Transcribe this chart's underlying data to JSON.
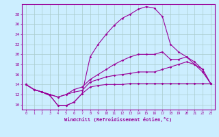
{
  "xlabel": "Windchill (Refroidissement éolien,°C)",
  "background_color": "#cceeff",
  "grid_color": "#aacccc",
  "line_color": "#990099",
  "x_ticks": [
    0,
    1,
    2,
    3,
    4,
    5,
    6,
    7,
    8,
    9,
    10,
    11,
    12,
    13,
    14,
    15,
    16,
    17,
    18,
    19,
    20,
    21,
    22,
    23
  ],
  "y_ticks": [
    10,
    12,
    14,
    16,
    18,
    20,
    22,
    24,
    26,
    28
  ],
  "xlim": [
    -0.5,
    23.5
  ],
  "ylim": [
    9.0,
    30.0
  ],
  "series": {
    "line1": [
      14.0,
      13.0,
      12.5,
      11.8,
      9.8,
      9.8,
      10.5,
      12.2,
      13.5,
      13.8,
      14.0,
      14.0,
      14.0,
      14.2,
      14.2,
      14.2,
      14.2,
      14.2,
      14.2,
      14.2,
      14.2,
      14.2,
      14.2,
      14.2
    ],
    "line2": [
      14.0,
      13.0,
      12.5,
      12.0,
      11.5,
      12.0,
      12.5,
      12.8,
      14.5,
      15.0,
      15.5,
      15.8,
      16.0,
      16.2,
      16.5,
      16.5,
      16.5,
      17.0,
      17.5,
      18.0,
      18.5,
      18.0,
      17.0,
      14.2
    ],
    "line3": [
      14.0,
      13.0,
      12.5,
      12.0,
      11.5,
      12.0,
      13.0,
      13.5,
      15.0,
      16.0,
      17.0,
      18.0,
      18.8,
      19.5,
      20.0,
      20.0,
      20.0,
      20.5,
      19.0,
      19.0,
      19.5,
      18.5,
      17.0,
      14.2
    ],
    "line4": [
      14.0,
      13.0,
      12.5,
      11.8,
      9.8,
      9.8,
      10.5,
      12.2,
      19.5,
      22.0,
      24.0,
      25.8,
      27.2,
      28.0,
      29.0,
      29.5,
      29.2,
      27.5,
      22.0,
      20.5,
      19.5,
      18.0,
      16.5,
      14.2
    ]
  }
}
